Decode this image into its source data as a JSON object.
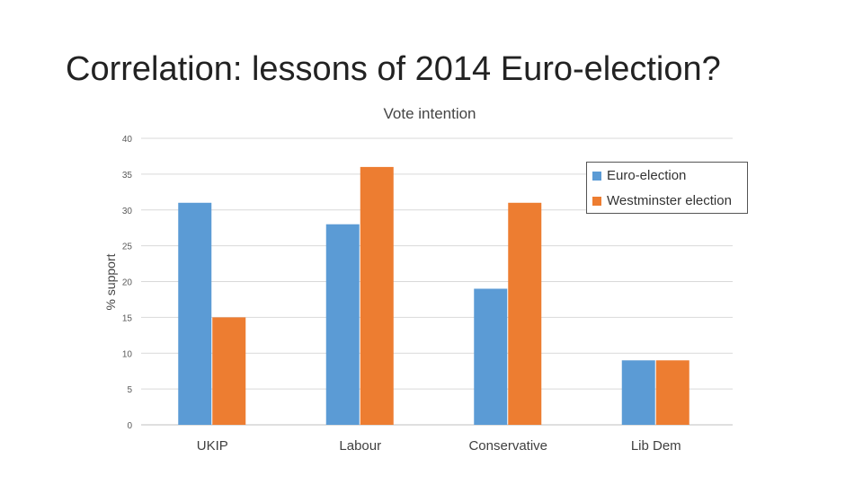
{
  "slide": {
    "title": "Correlation: lessons of 2014 Euro-election?"
  },
  "chart_data": {
    "type": "bar",
    "title": "Vote intention",
    "xlabel": "",
    "ylabel": "% support",
    "categories": [
      "UKIP",
      "Labour",
      "Conservative",
      "Lib Dem"
    ],
    "series": [
      {
        "name": "Euro-election",
        "values": [
          31,
          28,
          19,
          9
        ],
        "color": "#5B9BD5"
      },
      {
        "name": "Westminster election",
        "values": [
          15,
          36,
          31,
          9
        ],
        "color": "#ED7D31"
      }
    ],
    "ylim": [
      0,
      40
    ],
    "yticks": [
      0,
      5,
      10,
      15,
      20,
      25,
      30,
      35,
      40
    ],
    "grid": true,
    "legend_position": "top-right"
  }
}
